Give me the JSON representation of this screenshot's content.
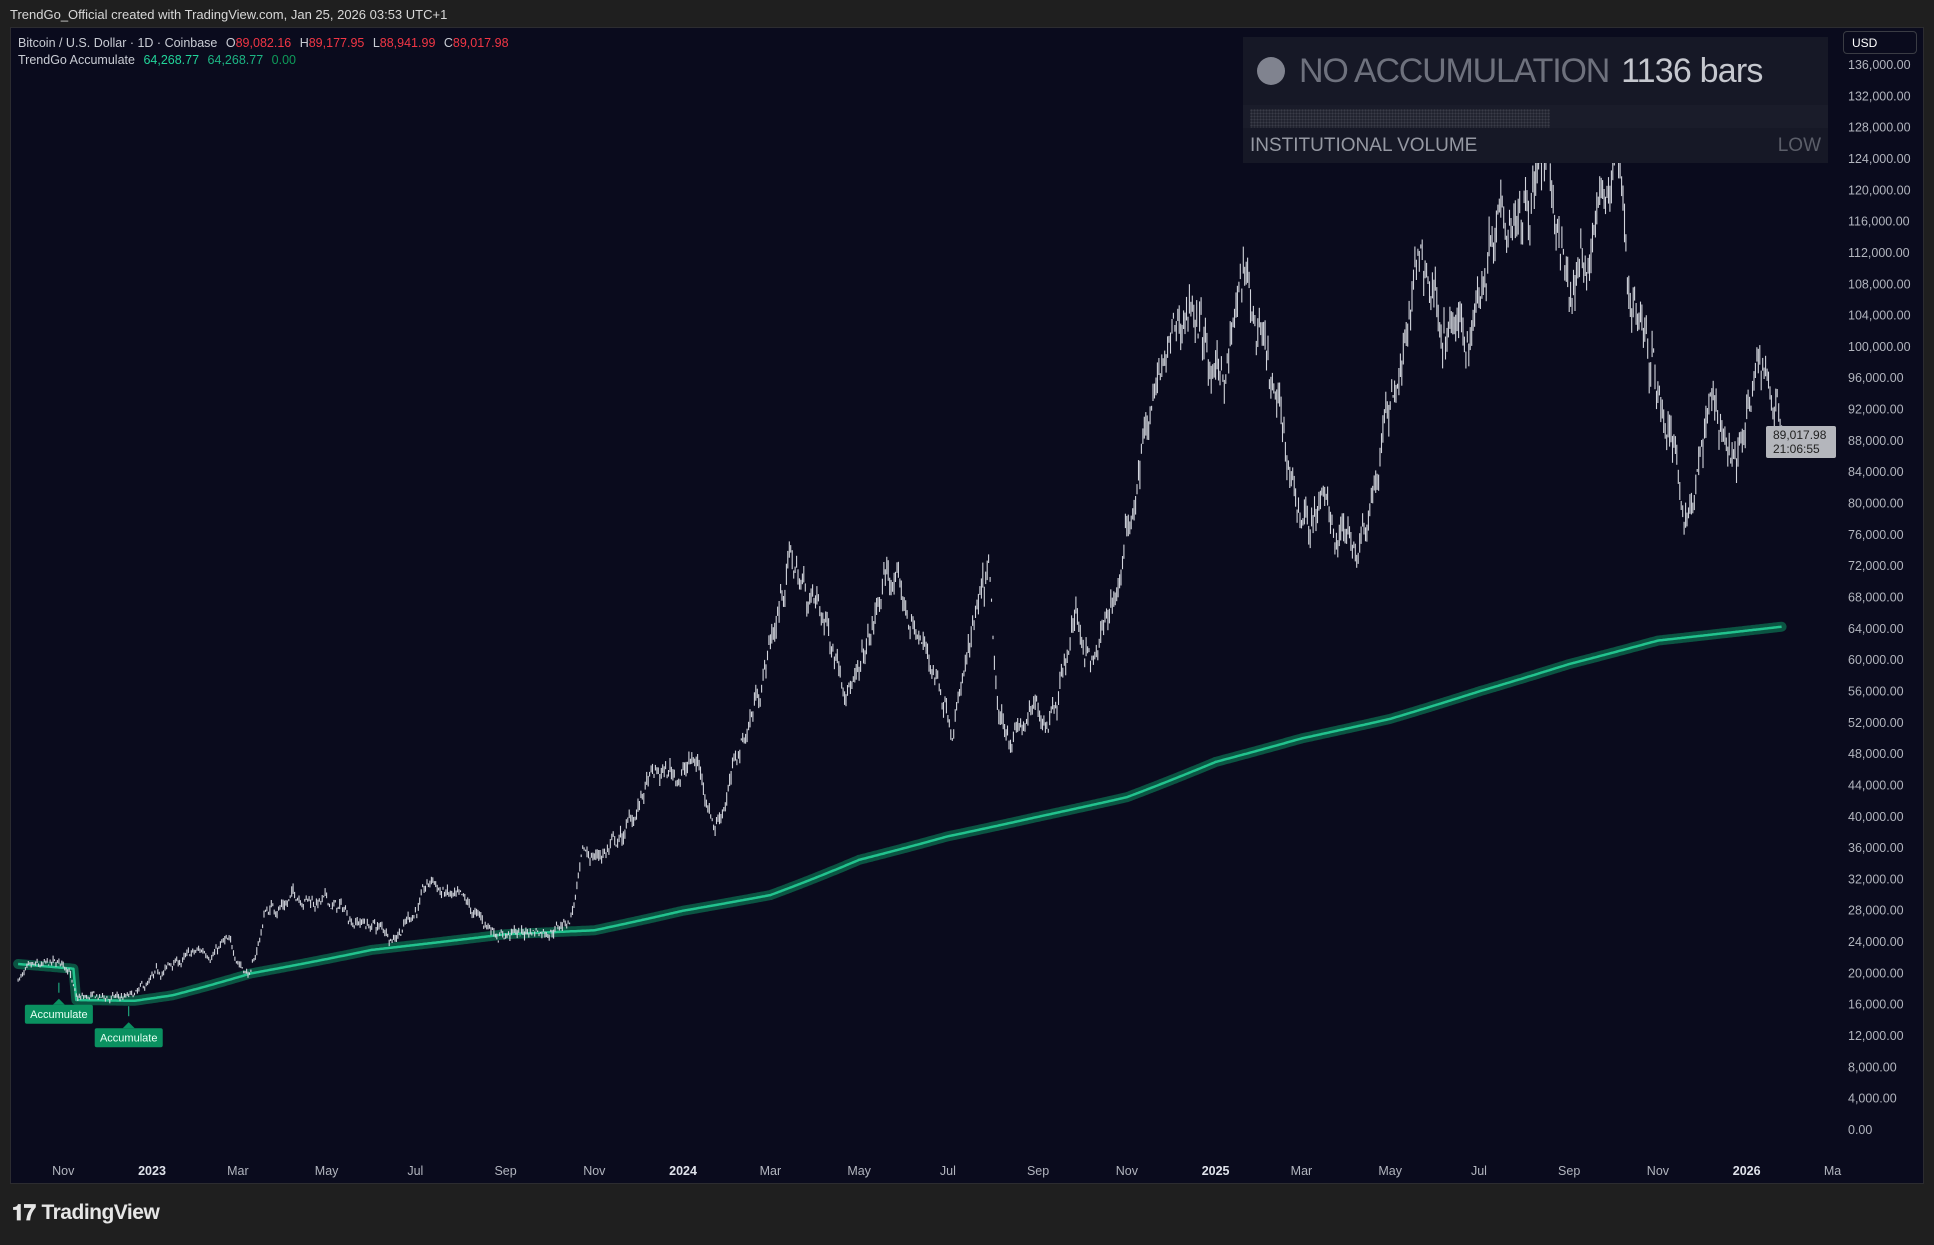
{
  "header": {
    "caption": "TrendGo_Official created with TradingView.com, Jan 25, 2026 03:53 UTC+1"
  },
  "legend": {
    "symbol": "Bitcoin / U.S. Dollar · 1D · Coinbase",
    "o_label": "O",
    "o": "89,082.16",
    "h_label": "H",
    "h": "89,177.95",
    "l_label": "L",
    "l": "88,941.99",
    "c_label": "C",
    "c": "89,017.98",
    "indicator": "TrendGo Accumulate",
    "ind_v1": "64,268.77",
    "ind_v2": "64,268.77",
    "ind_v3": "0.00"
  },
  "panel": {
    "status": "NO ACCUMULATION",
    "bars": "1136 bars",
    "volume_label": "INSTITUTIONAL VOLUME",
    "volume_level": "LOW",
    "volume_fill_fraction": 0.63,
    "status_dot_color": "#80838f"
  },
  "price_axis": {
    "currency": "USD",
    "last_price": "89,017.98",
    "countdown": "21:06:55"
  },
  "brand": {
    "logo": "TV",
    "name": "TradingView"
  },
  "colors": {
    "background": "#0a0b1d",
    "candles": "#d1d4dc",
    "accumulate_line": "#22c38e",
    "accumulate_halo": "#0b5c47",
    "signal_label": "#0a9160",
    "price_up": "#22d49a",
    "price_down": "#f23645"
  },
  "chart_data": {
    "type": "line",
    "title": "",
    "ylim": [
      0,
      136000
    ],
    "y_ticks": [
      0,
      4000,
      8000,
      12000,
      16000,
      20000,
      24000,
      28000,
      32000,
      36000,
      40000,
      44000,
      48000,
      52000,
      56000,
      60000,
      64000,
      68000,
      72000,
      76000,
      80000,
      84000,
      88000,
      92000,
      96000,
      100000,
      104000,
      108000,
      112000,
      116000,
      120000,
      124000,
      128000,
      132000,
      136000
    ],
    "x_ticks": [
      {
        "date": "2022-11-01",
        "label": "Nov",
        "bold": false
      },
      {
        "date": "2023-01-01",
        "label": "2023",
        "bold": true
      },
      {
        "date": "2023-03-01",
        "label": "Mar",
        "bold": false
      },
      {
        "date": "2023-05-01",
        "label": "May",
        "bold": false
      },
      {
        "date": "2023-07-01",
        "label": "Jul",
        "bold": false
      },
      {
        "date": "2023-09-01",
        "label": "Sep",
        "bold": false
      },
      {
        "date": "2023-11-01",
        "label": "Nov",
        "bold": false
      },
      {
        "date": "2024-01-01",
        "label": "2024",
        "bold": true
      },
      {
        "date": "2024-03-01",
        "label": "Mar",
        "bold": false
      },
      {
        "date": "2024-05-01",
        "label": "May",
        "bold": false
      },
      {
        "date": "2024-07-01",
        "label": "Jul",
        "bold": false
      },
      {
        "date": "2024-09-01",
        "label": "Sep",
        "bold": false
      },
      {
        "date": "2024-11-01",
        "label": "Nov",
        "bold": false
      },
      {
        "date": "2025-01-01",
        "label": "2025",
        "bold": true
      },
      {
        "date": "2025-03-01",
        "label": "Mar",
        "bold": false
      },
      {
        "date": "2025-05-01",
        "label": "May",
        "bold": false
      },
      {
        "date": "2025-07-01",
        "label": "Jul",
        "bold": false
      },
      {
        "date": "2025-09-01",
        "label": "Sep",
        "bold": false
      },
      {
        "date": "2025-11-01",
        "label": "Nov",
        "bold": false
      },
      {
        "date": "2026-01-01",
        "label": "2026",
        "bold": true
      },
      {
        "date": "2026-03-01",
        "label": "Ma",
        "bold": false
      }
    ],
    "series": [
      {
        "name": "Bitcoin / U.S. Dollar",
        "kind": "daily bars (approx. path)",
        "points": [
          [
            "2022-10-01",
            19500
          ],
          [
            "2022-11-05",
            21000
          ],
          [
            "2022-11-10",
            16500
          ],
          [
            "2022-12-20",
            16800
          ],
          [
            "2023-01-15",
            21000
          ],
          [
            "2023-02-20",
            23800
          ],
          [
            "2023-03-10",
            20000
          ],
          [
            "2023-03-20",
            28000
          ],
          [
            "2023-04-14",
            30500
          ],
          [
            "2023-06-15",
            25000
          ],
          [
            "2023-07-13",
            31500
          ],
          [
            "2023-08-17",
            26000
          ],
          [
            "2023-09-11",
            25000
          ],
          [
            "2023-10-15",
            27000
          ],
          [
            "2023-10-24",
            34000
          ],
          [
            "2023-11-20",
            37000
          ],
          [
            "2023-12-08",
            44000
          ],
          [
            "2024-01-11",
            47000
          ],
          [
            "2024-01-23",
            39500
          ],
          [
            "2024-02-15",
            52000
          ],
          [
            "2024-03-14",
            73000
          ],
          [
            "2024-05-01",
            57000
          ],
          [
            "2024-05-21",
            71000
          ],
          [
            "2024-07-05",
            54000
          ],
          [
            "2024-07-29",
            69000
          ],
          [
            "2024-08-05",
            50000
          ],
          [
            "2024-09-06",
            53000
          ],
          [
            "2024-09-27",
            66000
          ],
          [
            "2024-10-10",
            59000
          ],
          [
            "2024-10-29",
            72000
          ],
          [
            "2024-11-12",
            89000
          ],
          [
            "2024-12-17",
            107000
          ],
          [
            "2025-01-01",
            93000
          ],
          [
            "2025-01-20",
            108000
          ],
          [
            "2025-02-28",
            79000
          ],
          [
            "2025-04-08",
            76000
          ],
          [
            "2025-05-22",
            111000
          ],
          [
            "2025-06-22",
            99000
          ],
          [
            "2025-07-14",
            122000
          ],
          [
            "2025-08-14",
            123000
          ],
          [
            "2025-09-01",
            107000
          ],
          [
            "2025-10-06",
            125000
          ],
          [
            "2025-10-11",
            110000
          ],
          [
            "2025-11-21",
            81000
          ],
          [
            "2025-12-10",
            93000
          ],
          [
            "2025-12-25",
            87000
          ],
          [
            "2026-01-14",
            97000
          ],
          [
            "2026-01-25",
            89018
          ]
        ]
      },
      {
        "name": "TrendGo Accumulate",
        "kind": "line",
        "points": [
          [
            "2022-10-01",
            21200
          ],
          [
            "2022-11-08",
            20600
          ],
          [
            "2022-11-10",
            16600
          ],
          [
            "2022-12-20",
            16500
          ],
          [
            "2023-01-15",
            17200
          ],
          [
            "2023-03-10",
            20000
          ],
          [
            "2023-06-01",
            23000
          ],
          [
            "2023-09-01",
            25000
          ],
          [
            "2023-11-01",
            25500
          ],
          [
            "2024-01-01",
            28000
          ],
          [
            "2024-03-01",
            30000
          ],
          [
            "2024-05-01",
            34500
          ],
          [
            "2024-07-01",
            37500
          ],
          [
            "2024-09-01",
            40000
          ],
          [
            "2024-11-01",
            42500
          ],
          [
            "2025-01-01",
            47000
          ],
          [
            "2025-03-01",
            50000
          ],
          [
            "2025-05-01",
            52500
          ],
          [
            "2025-07-01",
            56000
          ],
          [
            "2025-09-01",
            59500
          ],
          [
            "2025-11-01",
            62500
          ],
          [
            "2026-01-25",
            64268.77
          ]
        ]
      }
    ],
    "annotations": [
      {
        "date": "2022-10-29",
        "label": "Accumulate",
        "price": 16000
      },
      {
        "date": "2022-12-16",
        "label": "Accumulate",
        "price": 13000
      }
    ]
  }
}
